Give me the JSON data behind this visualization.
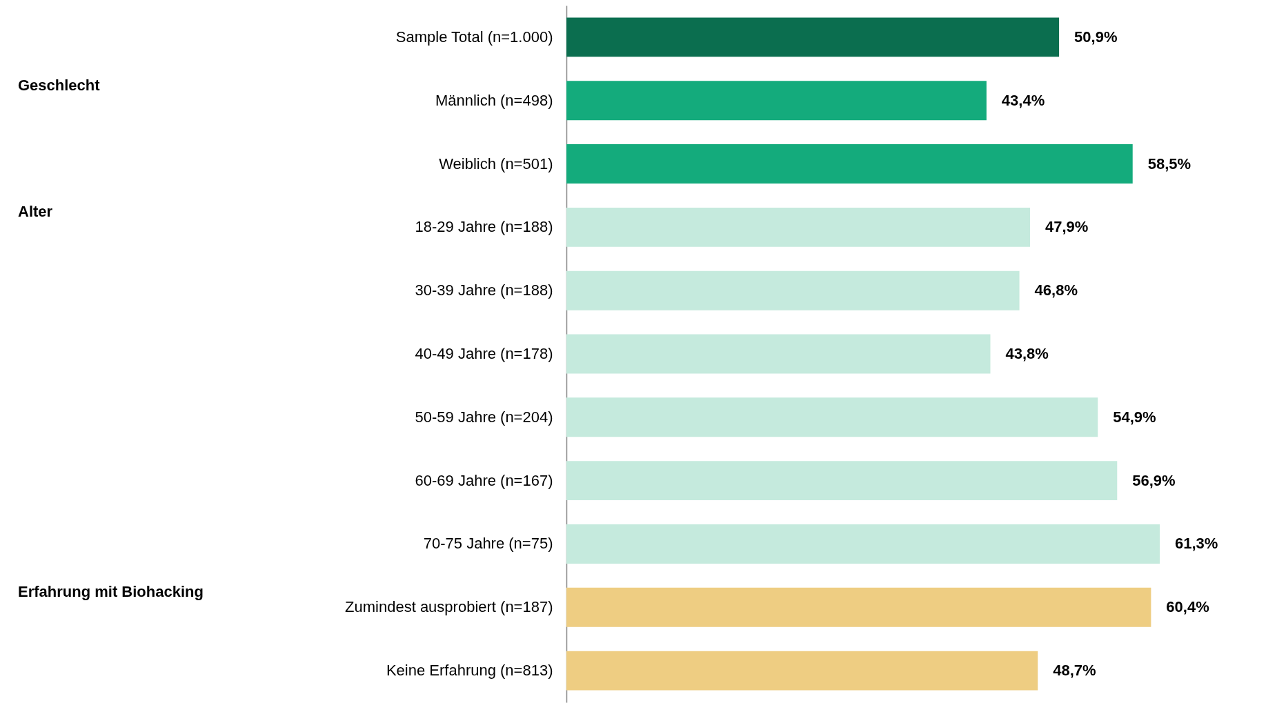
{
  "chart_data": {
    "type": "bar",
    "orientation": "horizontal",
    "data_labels": true,
    "categories": [
      "Sample Total (n=1.000)",
      "Männlich (n=498)",
      "Weiblich (n=501)",
      "18-29 Jahre (n=188)",
      "30-39 Jahre (n=188)",
      "40-49 Jahre (n=178)",
      "50-59 Jahre (n=204)",
      "60-69 Jahre (n=167)",
      "70-75 Jahre (n=75)",
      "Zumindest ausprobiert (n=187)",
      "Keine Erfahrung (n=813)"
    ],
    "values": [
      50.9,
      43.4,
      58.5,
      47.9,
      46.8,
      43.8,
      54.9,
      56.9,
      61.3,
      60.4,
      48.7
    ],
    "value_labels": [
      "50,9%",
      "43,4%",
      "58,5%",
      "47,9%",
      "46,8%",
      "43,8%",
      "54,9%",
      "56,9%",
      "61,3%",
      "60,4%",
      "48,7%"
    ],
    "colors": [
      "#0b6e4f",
      "#14ab7c",
      "#14ab7c",
      "#c5eadd",
      "#c5eadd",
      "#c5eadd",
      "#c5eadd",
      "#c5eadd",
      "#c5eadd",
      "#eecd82",
      "#eecd82"
    ],
    "annotations": [
      "Geschlecht",
      "Alter",
      "Erfahrung mit Biohacking"
    ]
  }
}
